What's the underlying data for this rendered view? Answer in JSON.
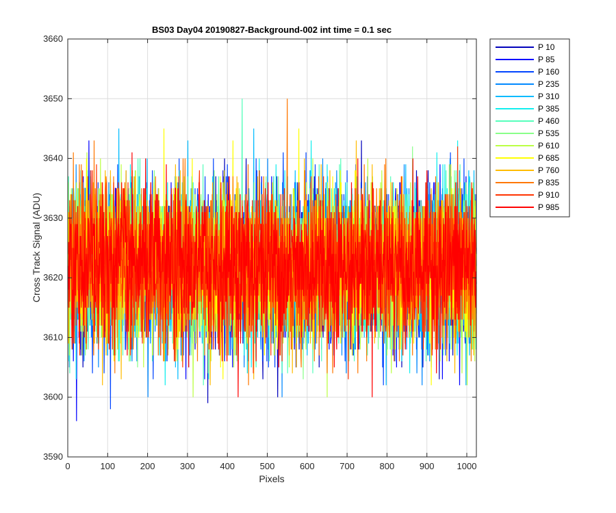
{
  "chart_data": {
    "type": "line",
    "title": "BS03 Day04 20190827-Background-002 int time = 0.1 sec",
    "xlabel": "Pixels",
    "ylabel": "Cross Track Signal (ADU)",
    "xlim": [
      0,
      1024
    ],
    "ylim": [
      3590,
      3660
    ],
    "xticks": [
      0,
      100,
      200,
      300,
      400,
      500,
      600,
      700,
      800,
      900,
      1000
    ],
    "yticks": [
      3590,
      3600,
      3610,
      3620,
      3630,
      3640,
      3650,
      3660
    ],
    "grid": true,
    "legend_position": "outside-top-right",
    "noise_model": {
      "mean": 3622,
      "stdev": 6.5,
      "min": 3590,
      "max": 3651,
      "points": 1024
    },
    "series": [
      {
        "name": "P 10",
        "color": "#0000BB"
      },
      {
        "name": "P 85",
        "color": "#0000FF"
      },
      {
        "name": "P 160",
        "color": "#0044FF"
      },
      {
        "name": "P 235",
        "color": "#0088FF"
      },
      {
        "name": "P 310",
        "color": "#00BBFF"
      },
      {
        "name": "P 385",
        "color": "#11EEEE"
      },
      {
        "name": "P 460",
        "color": "#55FFBB"
      },
      {
        "name": "P 535",
        "color": "#88FF88"
      },
      {
        "name": "P 610",
        "color": "#BBFF44"
      },
      {
        "name": "P 685",
        "color": "#FFFF00"
      },
      {
        "name": "P 760",
        "color": "#FFBB00"
      },
      {
        "name": "P 835",
        "color": "#FF7700"
      },
      {
        "name": "P 910",
        "color": "#FF3300"
      },
      {
        "name": "P 985",
        "color": "#FF0000"
      }
    ]
  }
}
